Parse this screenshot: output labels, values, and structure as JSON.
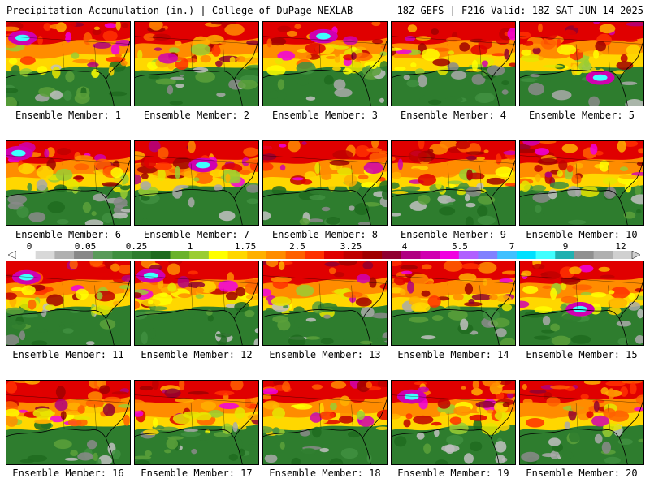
{
  "header": {
    "left_title": "Precipitation Accumulation (in.) | College of DuPage NEXLAB",
    "right_title": "18Z GEFS | F216 Valid: 18Z SAT JUN 14 2025"
  },
  "legend": {
    "tick_labels": [
      "0",
      "0.05",
      "0.25",
      "1",
      "1.75",
      "2.5",
      "3.25",
      "4",
      "5.5",
      "7",
      "9",
      "12"
    ],
    "colors": [
      "#ffffff",
      "#d8d8d8",
      "#b0b0b0",
      "#888888",
      "#5a9a5a",
      "#3f8f3f",
      "#2e7d2e",
      "#1f6b1f",
      "#6ab22b",
      "#9acd32",
      "#ffff00",
      "#ffd700",
      "#ffb000",
      "#ff8c00",
      "#ff6000",
      "#ff3000",
      "#e00000",
      "#c00000",
      "#a00000",
      "#900030",
      "#b00080",
      "#d000b0",
      "#f000e0",
      "#b060ff",
      "#8080ff",
      "#40c0ff",
      "#00e0ff",
      "#40ffff",
      "#20b0b0",
      "#909090",
      "#b0b0b0",
      "#d0d0d0"
    ]
  },
  "members": [
    {
      "caption": "Ensemble Member: 1"
    },
    {
      "caption": "Ensemble Member: 2"
    },
    {
      "caption": "Ensemble Member: 3"
    },
    {
      "caption": "Ensemble Member: 4"
    },
    {
      "caption": "Ensemble Member: 5"
    },
    {
      "caption": "Ensemble Member: 6"
    },
    {
      "caption": "Ensemble Member: 7"
    },
    {
      "caption": "Ensemble Member: 8"
    },
    {
      "caption": "Ensemble Member: 9"
    },
    {
      "caption": "Ensemble Member: 10"
    },
    {
      "caption": "Ensemble Member: 11"
    },
    {
      "caption": "Ensemble Member: 12"
    },
    {
      "caption": "Ensemble Member: 13"
    },
    {
      "caption": "Ensemble Member: 14"
    },
    {
      "caption": "Ensemble Member: 15"
    },
    {
      "caption": "Ensemble Member: 16"
    },
    {
      "caption": "Ensemble Member: 17"
    },
    {
      "caption": "Ensemble Member: 18"
    },
    {
      "caption": "Ensemble Member: 19"
    },
    {
      "caption": "Ensemble Member: 20"
    }
  ]
}
